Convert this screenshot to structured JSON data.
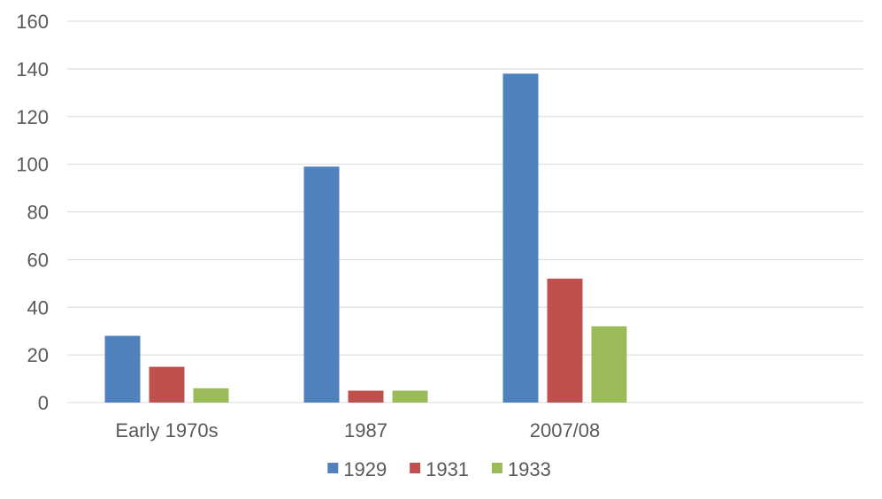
{
  "chart_data": {
    "type": "bar",
    "title": "",
    "xlabel": "",
    "ylabel": "",
    "categories": [
      "Early 1970s",
      "1987",
      "2007/08",
      ""
    ],
    "series": [
      {
        "name": "1929",
        "color": "#4f81bd",
        "values": [
          28,
          99,
          138,
          null
        ]
      },
      {
        "name": "1931",
        "color": "#c0504d",
        "values": [
          15,
          5,
          52,
          null
        ]
      },
      {
        "name": "1933",
        "color": "#9bbb59",
        "values": [
          6,
          5,
          32,
          null
        ]
      }
    ],
    "ylim": [
      0,
      160
    ],
    "yticks": [
      0,
      20,
      40,
      60,
      80,
      100,
      120,
      140,
      160
    ],
    "grid": true,
    "legend_position": "bottom"
  }
}
